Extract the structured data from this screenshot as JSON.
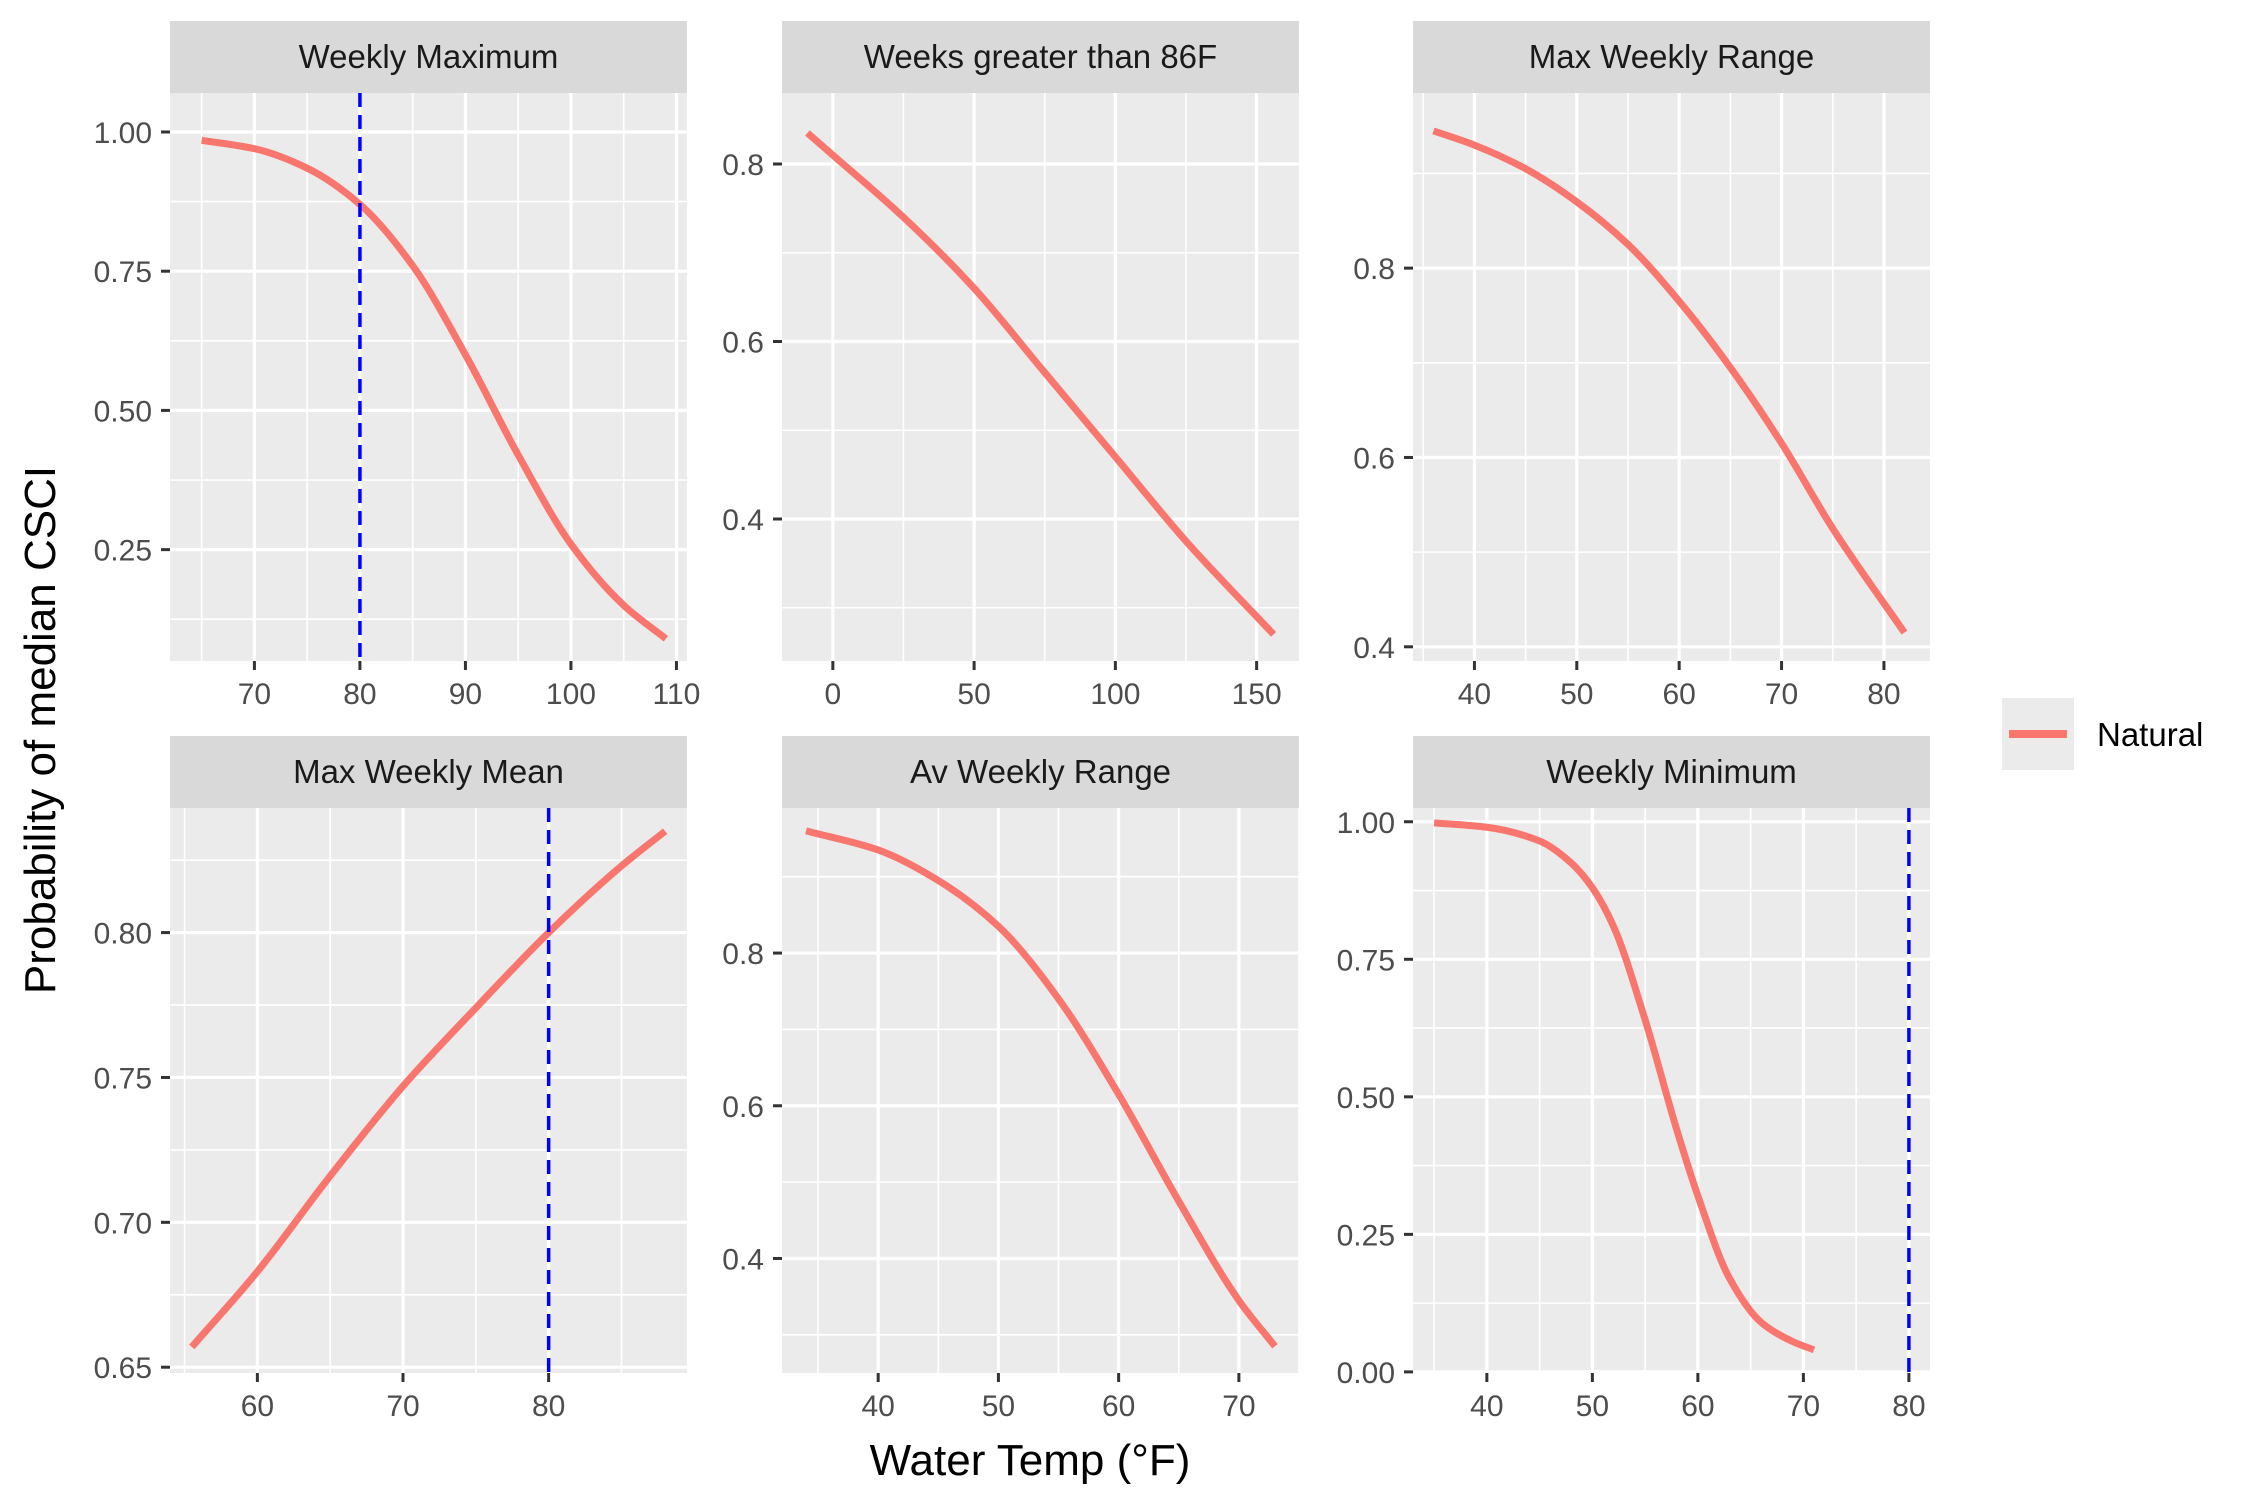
{
  "figure": {
    "xlabel": "Water Temp (°F)",
    "ylabel": "Probability of median CSCI",
    "legend": {
      "position": "right",
      "entries": [
        {
          "label": "Natural",
          "color": "#F8766D"
        }
      ]
    },
    "colors": {
      "panel_bg": "#EBEBEB",
      "strip_bg": "#D9D9D9",
      "grid": "#FFFFFF",
      "series": "#F8766D",
      "threshold": "#0000FF"
    }
  },
  "chart_data": [
    {
      "type": "line",
      "title": "Weekly Maximum",
      "xlim": [
        62,
        111
      ],
      "ylim": [
        0.05,
        1.07
      ],
      "xticks": [
        70,
        80,
        90,
        100,
        110
      ],
      "xtick_labels": [
        "70",
        "80",
        "90",
        "100",
        "110"
      ],
      "yticks": [
        0.25,
        0.5,
        0.75,
        1.0
      ],
      "ytick_labels": [
        "0.25",
        "0.50",
        "0.75",
        "1.00"
      ],
      "vline": 80,
      "series": [
        {
          "name": "Natural",
          "x": [
            65,
            70,
            75,
            80,
            85,
            90,
            95,
            100,
            105,
            109
          ],
          "y": [
            0.985,
            0.97,
            0.935,
            0.87,
            0.76,
            0.6,
            0.42,
            0.26,
            0.15,
            0.09
          ]
        }
      ]
    },
    {
      "type": "line",
      "title": "Weeks greater than 86F",
      "xlim": [
        -18,
        165
      ],
      "ylim": [
        0.24,
        0.88
      ],
      "xticks": [
        0,
        50,
        100,
        150
      ],
      "xtick_labels": [
        "0",
        "50",
        "100",
        "150"
      ],
      "yticks": [
        0.4,
        0.6,
        0.8
      ],
      "ytick_labels": [
        "0.4",
        "0.6",
        "0.8"
      ],
      "series": [
        {
          "name": "Natural",
          "x": [
            -9,
            0,
            25,
            50,
            75,
            100,
            125,
            156
          ],
          "y": [
            0.835,
            0.81,
            0.74,
            0.66,
            0.565,
            0.47,
            0.375,
            0.27
          ]
        }
      ]
    },
    {
      "type": "line",
      "title": "Max Weekly Range",
      "xlim": [
        34,
        84.5
      ],
      "ylim": [
        0.385,
        0.985
      ],
      "xticks": [
        40,
        50,
        60,
        70,
        80
      ],
      "xtick_labels": [
        "40",
        "50",
        "60",
        "70",
        "80"
      ],
      "yticks": [
        0.4,
        0.6,
        0.8
      ],
      "ytick_labels": [
        "0.4",
        "0.6",
        "0.8"
      ],
      "series": [
        {
          "name": "Natural",
          "x": [
            36,
            40,
            45,
            50,
            55,
            60,
            65,
            70,
            75,
            82
          ],
          "y": [
            0.945,
            0.93,
            0.905,
            0.87,
            0.825,
            0.765,
            0.695,
            0.615,
            0.525,
            0.415
          ]
        }
      ]
    },
    {
      "type": "line",
      "title": "Max Weekly Mean",
      "xlim": [
        54,
        89.5
      ],
      "ylim": [
        0.648,
        0.843
      ],
      "xticks": [
        60,
        70,
        80
      ],
      "xtick_labels": [
        "60",
        "70",
        "80"
      ],
      "yticks": [
        0.65,
        0.7,
        0.75,
        0.8
      ],
      "ytick_labels": [
        "0.65",
        "0.70",
        "0.75",
        "0.80"
      ],
      "vline": 80,
      "series": [
        {
          "name": "Natural",
          "x": [
            55.5,
            60,
            65,
            70,
            75,
            80,
            85,
            88
          ],
          "y": [
            0.657,
            0.683,
            0.716,
            0.747,
            0.774,
            0.8,
            0.823,
            0.835
          ]
        }
      ]
    },
    {
      "type": "line",
      "title": "Av Weekly Range",
      "xlim": [
        32,
        75
      ],
      "ylim": [
        0.25,
        0.99
      ],
      "xticks": [
        40,
        50,
        60,
        70
      ],
      "xtick_labels": [
        "40",
        "50",
        "60",
        "70"
      ],
      "yticks": [
        0.4,
        0.6,
        0.8
      ],
      "ytick_labels": [
        "0.4",
        "0.6",
        "0.8"
      ],
      "series": [
        {
          "name": "Natural",
          "x": [
            34,
            40,
            45,
            50,
            55,
            60,
            65,
            70,
            73
          ],
          "y": [
            0.96,
            0.935,
            0.895,
            0.835,
            0.74,
            0.615,
            0.475,
            0.345,
            0.285
          ]
        }
      ]
    },
    {
      "type": "line",
      "title": "Weekly Minimum",
      "xlim": [
        33,
        82
      ],
      "ylim": [
        -0.002,
        1.025
      ],
      "xticks": [
        40,
        50,
        60,
        70,
        80
      ],
      "xtick_labels": [
        "40",
        "50",
        "60",
        "70",
        "80"
      ],
      "yticks": [
        0.0,
        0.25,
        0.5,
        0.75,
        1.0
      ],
      "ytick_labels": [
        "0.00",
        "0.25",
        "0.50",
        "0.75",
        "1.00"
      ],
      "vline": 80,
      "series": [
        {
          "name": "Natural",
          "x": [
            35,
            40,
            45,
            48,
            50,
            52,
            55,
            58,
            60,
            63,
            66,
            69,
            71
          ],
          "y": [
            0.998,
            0.99,
            0.965,
            0.925,
            0.88,
            0.81,
            0.64,
            0.44,
            0.32,
            0.17,
            0.09,
            0.055,
            0.04
          ]
        }
      ]
    }
  ]
}
